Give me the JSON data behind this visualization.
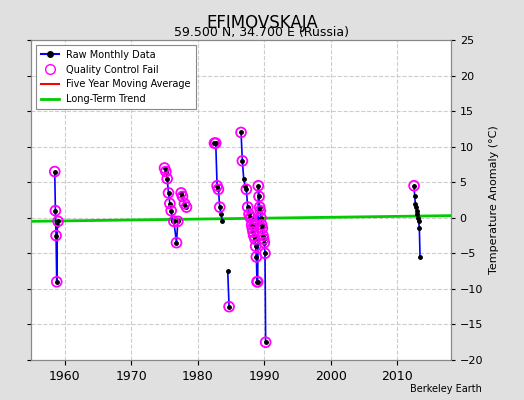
{
  "title": "EFIMOVSKAJA",
  "subtitle": "59.500 N, 34.700 E (Russia)",
  "ylabel": "Temperature Anomaly (°C)",
  "xlim": [
    1955,
    2018
  ],
  "ylim": [
    -20,
    25
  ],
  "yticks": [
    -20,
    -15,
    -10,
    -5,
    0,
    5,
    10,
    15,
    20,
    25
  ],
  "xticks": [
    1960,
    1970,
    1980,
    1990,
    2000,
    2010
  ],
  "background_color": "#e0e0e0",
  "plot_bg_color": "#ffffff",
  "grid_color": "#c8c8c8",
  "watermark": "Berkeley Earth",
  "raw_segments": [
    {
      "x": [
        1958.5,
        1958.6,
        1958.7,
        1958.8,
        1958.9,
        1959.0
      ],
      "y": [
        6.5,
        1.0,
        -2.5,
        -9.0,
        -1.0,
        -0.5
      ]
    },
    {
      "x": [
        1975.0,
        1975.2,
        1975.4,
        1975.6,
        1975.8,
        1976.0,
        1976.2,
        1976.4,
        1976.8,
        1977.0
      ],
      "y": [
        7.0,
        6.5,
        5.5,
        3.5,
        2.0,
        1.0,
        -0.5,
        -0.5,
        -3.5,
        -0.5
      ]
    },
    {
      "x": [
        1977.5,
        1977.7,
        1978.0,
        1978.3
      ],
      "y": [
        3.5,
        3.0,
        2.0,
        1.5
      ]
    },
    {
      "x": [
        1982.5,
        1982.7,
        1982.9,
        1983.1,
        1983.3,
        1983.5,
        1983.7
      ],
      "y": [
        10.5,
        10.5,
        4.5,
        4.0,
        1.5,
        0.5,
        -0.5
      ]
    },
    {
      "x": [
        1984.5,
        1984.7
      ],
      "y": [
        -7.5,
        -12.5
      ]
    },
    {
      "x": [
        1986.5,
        1986.7,
        1986.9,
        1987.1,
        1987.3,
        1987.5,
        1987.7,
        1987.9,
        1988.0,
        1988.1,
        1988.2,
        1988.3,
        1988.4,
        1988.5,
        1988.6,
        1988.7,
        1988.8,
        1988.9,
        1989.0,
        1989.1,
        1989.2,
        1989.3,
        1989.4,
        1989.5,
        1989.6,
        1989.7,
        1989.8,
        1989.9,
        1990.0,
        1990.1,
        1990.2
      ],
      "y": [
        12.0,
        8.0,
        5.5,
        4.5,
        4.0,
        1.5,
        0.5,
        0.0,
        0.0,
        -1.0,
        -1.5,
        -2.0,
        -2.5,
        -1.0,
        -3.0,
        -4.0,
        -5.5,
        -9.0,
        -9.0,
        4.5,
        3.0,
        1.5,
        1.0,
        0.0,
        -1.0,
        -1.5,
        -2.5,
        -3.0,
        -3.5,
        -5.0,
        -17.5
      ]
    },
    {
      "x": [
        2012.5,
        2012.6,
        2012.7,
        2012.8,
        2012.9,
        2013.0,
        2013.1,
        2013.2,
        2013.3,
        2013.4
      ],
      "y": [
        4.5,
        3.0,
        2.0,
        1.5,
        1.0,
        0.5,
        0.0,
        -0.5,
        -1.5,
        -5.5
      ]
    }
  ],
  "qc_fail_points": [
    [
      1958.5,
      6.5
    ],
    [
      1958.6,
      1.0
    ],
    [
      1958.7,
      -2.5
    ],
    [
      1958.8,
      -9.0
    ],
    [
      1959.0,
      -0.5
    ],
    [
      1975.0,
      7.0
    ],
    [
      1975.2,
      6.5
    ],
    [
      1975.4,
      5.5
    ],
    [
      1975.6,
      3.5
    ],
    [
      1975.8,
      2.0
    ],
    [
      1976.0,
      1.0
    ],
    [
      1976.4,
      -0.5
    ],
    [
      1976.8,
      -3.5
    ],
    [
      1977.0,
      -0.5
    ],
    [
      1977.5,
      3.5
    ],
    [
      1977.7,
      3.0
    ],
    [
      1978.0,
      2.0
    ],
    [
      1978.3,
      1.5
    ],
    [
      1982.5,
      10.5
    ],
    [
      1982.7,
      10.5
    ],
    [
      1982.9,
      4.5
    ],
    [
      1983.1,
      4.0
    ],
    [
      1983.3,
      1.5
    ],
    [
      1984.7,
      -12.5
    ],
    [
      1986.5,
      12.0
    ],
    [
      1986.7,
      8.0
    ],
    [
      1987.3,
      4.0
    ],
    [
      1987.5,
      1.5
    ],
    [
      1987.7,
      0.5
    ],
    [
      1987.9,
      0.0
    ],
    [
      1988.0,
      0.0
    ],
    [
      1988.1,
      -1.0
    ],
    [
      1988.2,
      -1.5
    ],
    [
      1988.3,
      -2.0
    ],
    [
      1988.4,
      -2.5
    ],
    [
      1988.5,
      -1.0
    ],
    [
      1988.6,
      -3.0
    ],
    [
      1988.7,
      -4.0
    ],
    [
      1988.8,
      -5.5
    ],
    [
      1988.9,
      -9.0
    ],
    [
      1989.0,
      -9.0
    ],
    [
      1989.1,
      4.5
    ],
    [
      1989.2,
      3.0
    ],
    [
      1989.3,
      1.5
    ],
    [
      1989.4,
      1.0
    ],
    [
      1989.5,
      0.0
    ],
    [
      1989.6,
      -1.0
    ],
    [
      1989.7,
      -1.5
    ],
    [
      1989.8,
      -2.5
    ],
    [
      1989.9,
      -3.0
    ],
    [
      1990.0,
      -3.5
    ],
    [
      1990.1,
      -5.0
    ],
    [
      1990.2,
      -17.5
    ],
    [
      2012.5,
      4.5
    ]
  ],
  "long_term_trend": {
    "x": [
      1955,
      2018
    ],
    "y": [
      -0.5,
      0.3
    ]
  },
  "raw_color": "#0000ff",
  "raw_marker_color": "#000000",
  "qc_color": "#ff00ff",
  "trend_color": "#00cc00",
  "five_year_color": "#ff0000"
}
